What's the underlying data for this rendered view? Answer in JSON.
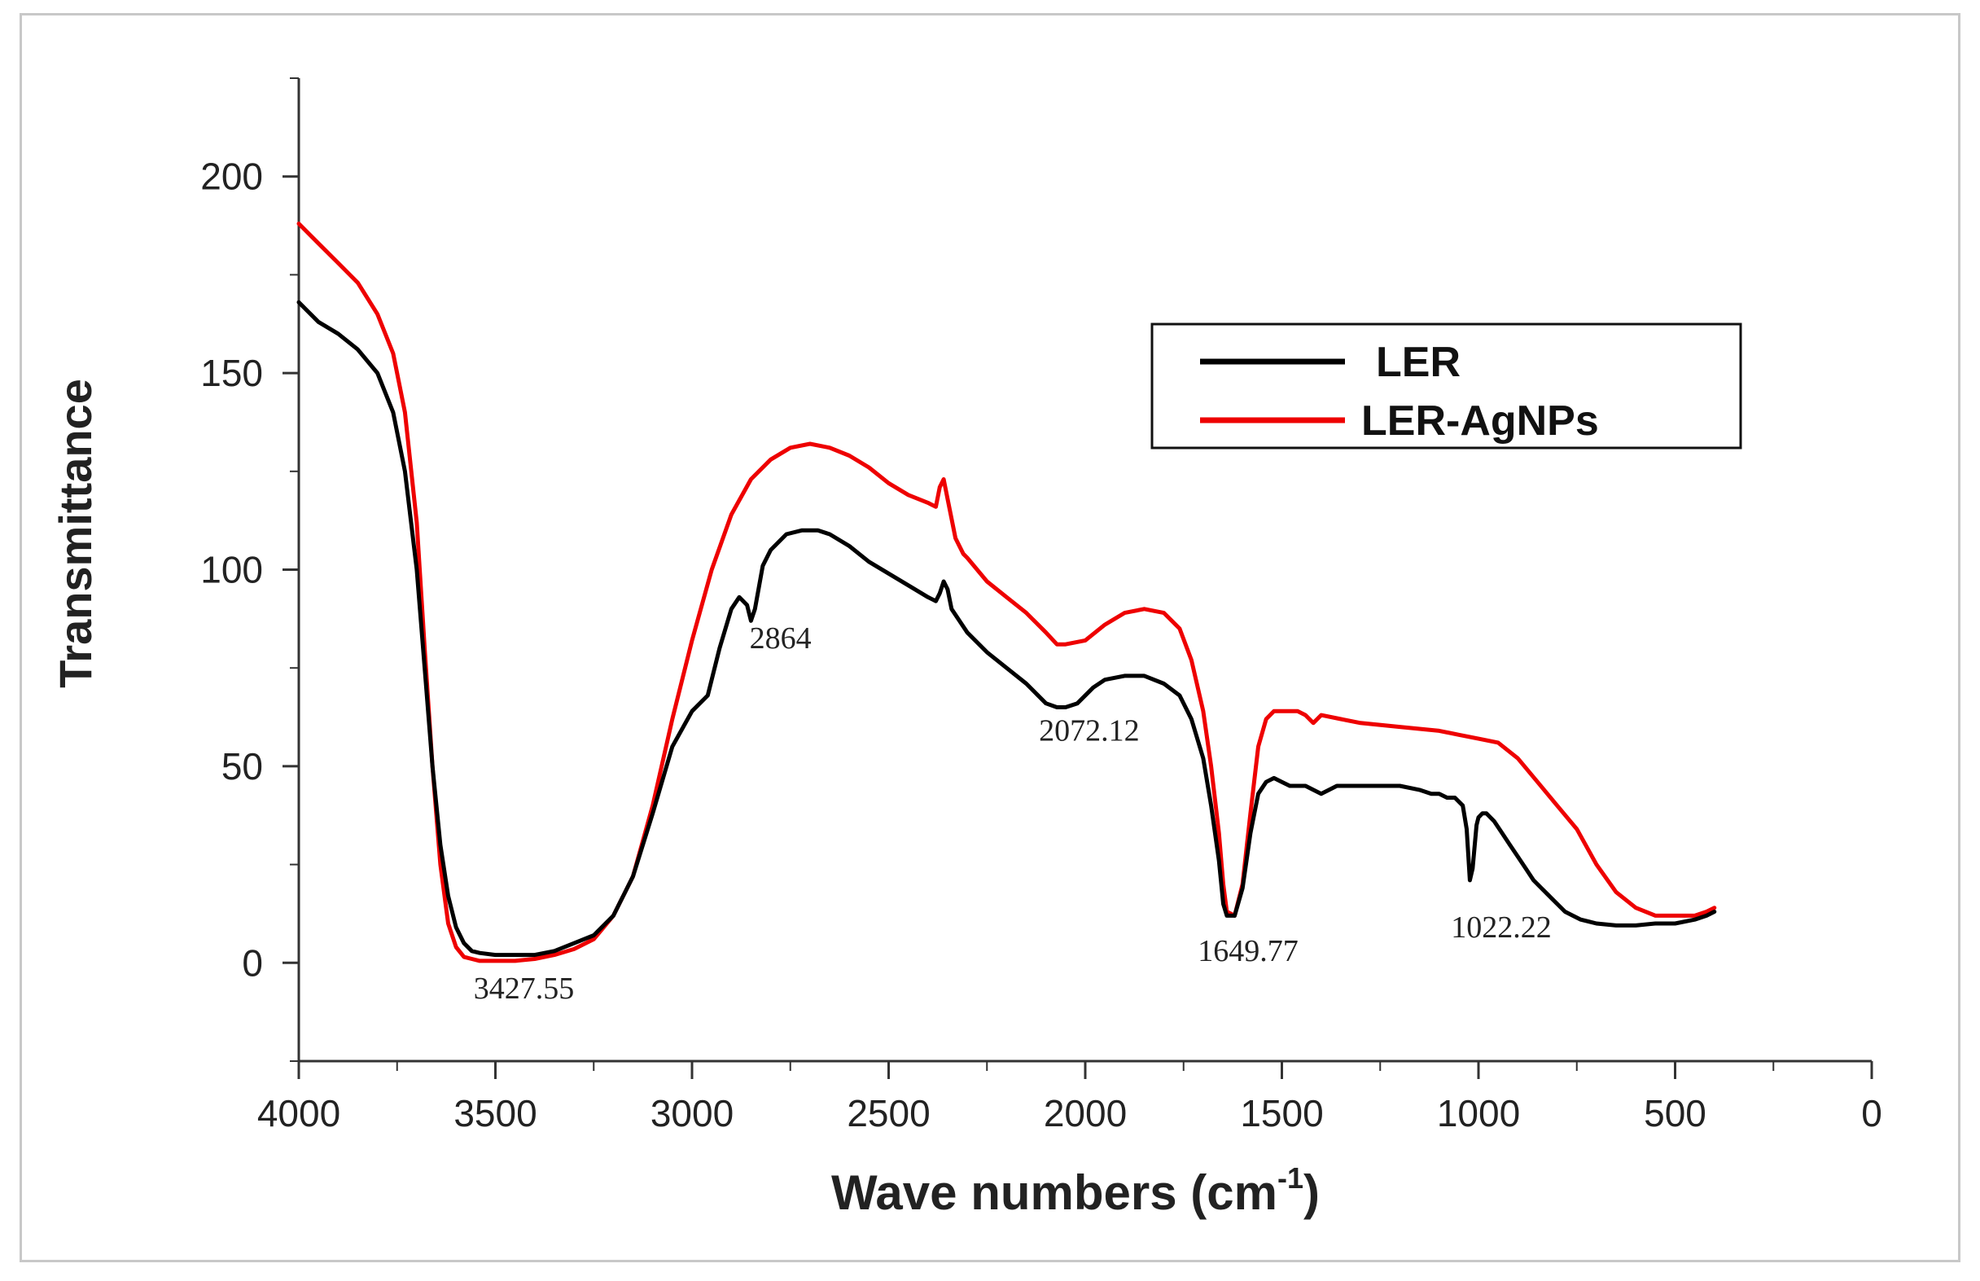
{
  "chart_data": {
    "type": "line",
    "title": "",
    "xlabel": "Wave numbers (cm",
    "xlabel_sup": "-1",
    "xlabel_tail": ")",
    "ylabel": "Transmittance",
    "xlim": [
      4000,
      0
    ],
    "ylim": [
      -25,
      225
    ],
    "x_ticks": [
      4000,
      3500,
      3000,
      2500,
      2000,
      1500,
      1000,
      500,
      0
    ],
    "x_tick_labels": [
      "4000",
      "3500",
      "3000",
      "2500",
      "2000",
      "1500",
      "1000",
      "500",
      "0"
    ],
    "y_ticks": [
      0,
      50,
      100,
      150,
      200
    ],
    "y_tick_labels": [
      "0",
      "50",
      "100",
      "150",
      "200"
    ],
    "legend_position": "upper-right",
    "colors": {
      "LER": "#000000",
      "LER-AgNPs": "#ee0000",
      "frame": "#c8c8c8"
    },
    "series": [
      {
        "name": "LER",
        "color": "#000000",
        "x": [
          4000,
          3950,
          3900,
          3850,
          3800,
          3760,
          3730,
          3700,
          3680,
          3660,
          3640,
          3620,
          3600,
          3580,
          3560,
          3540,
          3500,
          3450,
          3400,
          3350,
          3300,
          3250,
          3200,
          3150,
          3100,
          3050,
          3000,
          2960,
          2930,
          2900,
          2880,
          2860,
          2850,
          2840,
          2820,
          2800,
          2760,
          2720,
          2680,
          2650,
          2600,
          2550,
          2500,
          2450,
          2400,
          2380,
          2370,
          2360,
          2350,
          2340,
          2300,
          2250,
          2200,
          2150,
          2100,
          2072,
          2050,
          2020,
          1980,
          1950,
          1900,
          1880,
          1850,
          1800,
          1760,
          1730,
          1700,
          1680,
          1660,
          1649,
          1640,
          1620,
          1600,
          1580,
          1560,
          1540,
          1520,
          1500,
          1480,
          1460,
          1440,
          1420,
          1400,
          1380,
          1360,
          1340,
          1300,
          1250,
          1200,
          1150,
          1120,
          1100,
          1080,
          1060,
          1040,
          1030,
          1022,
          1015,
          1005,
          1000,
          990,
          980,
          960,
          940,
          920,
          900,
          880,
          860,
          840,
          820,
          800,
          780,
          760,
          740,
          720,
          700,
          650,
          600,
          550,
          500,
          450,
          420,
          400
        ],
        "y": [
          168,
          163,
          160,
          156,
          150,
          140,
          125,
          100,
          75,
          50,
          30,
          17,
          9,
          5,
          3,
          2.5,
          2,
          2,
          2,
          3,
          5,
          7,
          12,
          22,
          38,
          55,
          64,
          68,
          80,
          90,
          93,
          91,
          87,
          90,
          101,
          105,
          109,
          110,
          110,
          109,
          106,
          102,
          99,
          96,
          93,
          92,
          94,
          97,
          95,
          90,
          84,
          79,
          75,
          71,
          66,
          65,
          65,
          66,
          70,
          72,
          73,
          73,
          73,
          71,
          68,
          62,
          52,
          40,
          26,
          15,
          12,
          12,
          19,
          33,
          43,
          46,
          47,
          46,
          45,
          45,
          45,
          44,
          43,
          44,
          45,
          45,
          45,
          45,
          45,
          44,
          43,
          43,
          42,
          42,
          40,
          34,
          21,
          24,
          35,
          37,
          38,
          38,
          36,
          33,
          30,
          27,
          24,
          21,
          19,
          17,
          15,
          13,
          12,
          11,
          10.5,
          10,
          9.5,
          9.5,
          10,
          10,
          11,
          12,
          13
        ]
      },
      {
        "name": "LER-AgNPs",
        "color": "#ee0000",
        "x": [
          4000,
          3950,
          3900,
          3850,
          3800,
          3760,
          3730,
          3700,
          3680,
          3660,
          3640,
          3620,
          3600,
          3580,
          3560,
          3540,
          3500,
          3450,
          3400,
          3350,
          3300,
          3250,
          3200,
          3150,
          3100,
          3050,
          3000,
          2950,
          2900,
          2850,
          2800,
          2750,
          2700,
          2650,
          2600,
          2550,
          2500,
          2450,
          2400,
          2380,
          2370,
          2360,
          2350,
          2330,
          2310,
          2300,
          2250,
          2200,
          2150,
          2100,
          2072,
          2050,
          2000,
          1950,
          1900,
          1850,
          1800,
          1760,
          1730,
          1700,
          1680,
          1660,
          1649,
          1640,
          1620,
          1600,
          1580,
          1560,
          1540,
          1520,
          1500,
          1480,
          1460,
          1440,
          1420,
          1400,
          1350,
          1300,
          1200,
          1100,
          1050,
          1000,
          950,
          900,
          850,
          800,
          750,
          700,
          650,
          600,
          550,
          500,
          450,
          420,
          400
        ],
        "y": [
          188,
          183,
          178,
          173,
          165,
          155,
          140,
          112,
          80,
          50,
          25,
          10,
          4,
          1.5,
          1,
          0.5,
          0.5,
          0.5,
          1,
          2,
          3.5,
          6,
          12,
          22,
          40,
          62,
          82,
          100,
          114,
          123,
          128,
          131,
          132,
          131,
          129,
          126,
          122,
          119,
          117,
          116,
          121,
          123,
          118,
          108,
          104,
          103,
          97,
          93,
          89,
          84,
          81,
          81,
          82,
          86,
          89,
          90,
          89,
          85,
          77,
          64,
          50,
          33,
          20,
          13,
          12,
          20,
          38,
          55,
          62,
          64,
          64,
          64,
          64,
          63,
          61,
          63,
          62,
          61,
          60,
          59,
          58,
          57,
          56,
          52,
          46,
          40,
          34,
          25,
          18,
          14,
          12,
          12,
          12,
          13,
          14
        ]
      }
    ],
    "annotations": [
      {
        "text": "3427.55",
        "x": 3427.55,
        "y": -9
      },
      {
        "text": "2864",
        "x": 2775,
        "y": 80
      },
      {
        "text": "2072.12",
        "x": 1990,
        "y": 56.5
      },
      {
        "text": "1649.77",
        "x": 1586,
        "y": 0.5
      },
      {
        "text": "1022.22",
        "x": 942,
        "y": 6.5
      }
    ]
  }
}
